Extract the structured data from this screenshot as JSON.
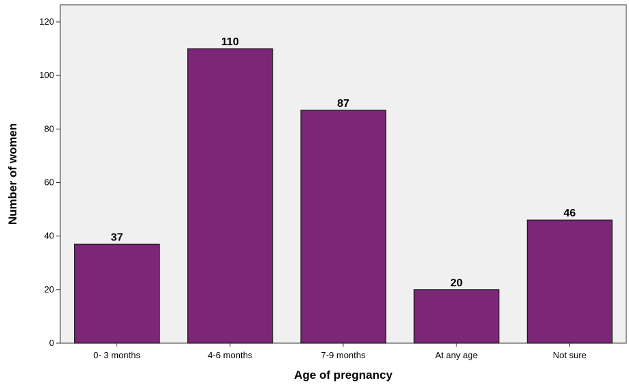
{
  "chart_data": {
    "type": "bar",
    "title": "",
    "xlabel": "Age of pregnancy",
    "ylabel": "Number of women",
    "categories": [
      "0- 3 months",
      "4-6 months",
      "7-9 months",
      "At any age",
      "Not sure"
    ],
    "values": [
      37,
      110,
      87,
      20,
      46
    ],
    "data_labels": [
      "37",
      "110",
      "87",
      "20",
      "46"
    ],
    "yticks": [
      "0",
      "20",
      "40",
      "60",
      "80",
      "100",
      "120"
    ],
    "ylim": [
      0,
      120
    ],
    "grid": false,
    "legend": "none",
    "colors": {
      "bar_fill": "#7B2677",
      "bar_stroke": "#1a1a1a",
      "plot_background": "#F0F0F0",
      "axis": "#333333"
    }
  }
}
